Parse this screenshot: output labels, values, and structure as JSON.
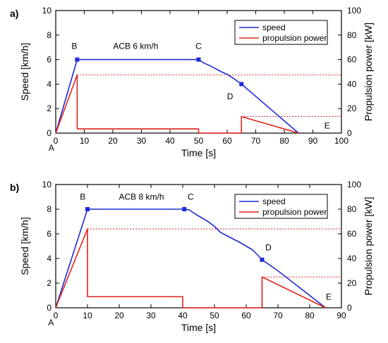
{
  "chart_data": [
    {
      "panel_label": "a)",
      "type": "line",
      "xlabel": "Time [s]",
      "ylabel": "Speed [km/h]",
      "y2label": "Propulsion power [kW]",
      "xlim": [
        0,
        100
      ],
      "ylim": [
        0,
        10
      ],
      "y2lim": [
        0,
        100
      ],
      "xticks": [
        "0",
        "10",
        "20",
        "30",
        "40",
        "50",
        "60",
        "70",
        "80",
        "90",
        "100"
      ],
      "yticks": [
        "0",
        "2",
        "4",
        "6",
        "8",
        "10"
      ],
      "y2ticks": [
        "0",
        "20",
        "40",
        "60",
        "80",
        "100"
      ],
      "annotation": "ACB 6 km/h",
      "legend_position": "top-right",
      "series": [
        {
          "name": "speed",
          "color": "#1f2bd6",
          "axis": "left",
          "x": [
            0,
            7.5,
            50,
            52,
            54,
            56,
            58,
            60,
            62,
            65,
            70,
            75,
            80,
            85
          ],
          "y": [
            0,
            6.0,
            6.0,
            5.7,
            5.5,
            5.25,
            5.0,
            4.8,
            4.5,
            4.0,
            3.0,
            2.0,
            1.0,
            0.0
          ]
        },
        {
          "name": "propulsion power",
          "color": "#e0231c",
          "axis": "right",
          "x": [
            0,
            7.5,
            7.5,
            50,
            50,
            65,
            65,
            85
          ],
          "y": [
            0,
            47.5,
            3.5,
            3.5,
            0,
            0,
            13.5,
            0
          ]
        }
      ],
      "ref_lines": [
        {
          "axis": "right",
          "y": 47.5,
          "x_from": 7.5,
          "x_to": 100
        },
        {
          "axis": "right",
          "y": 13.5,
          "x_from": 65,
          "x_to": 100
        }
      ],
      "markers": [
        {
          "x": 7.5,
          "y": 6.0
        },
        {
          "x": 50,
          "y": 6.0
        },
        {
          "x": 65,
          "y": 4.0
        }
      ],
      "point_labels": [
        {
          "text": "A",
          "x": -1.5,
          "y": -1.2
        },
        {
          "text": "B",
          "x": 6.5,
          "y": 7.1
        },
        {
          "text": "C",
          "x": 50,
          "y": 7.1
        },
        {
          "text": "D",
          "x": 61,
          "y": 3.0
        },
        {
          "text": "E",
          "x": 95,
          "y": 0.6
        }
      ]
    },
    {
      "panel_label": "b)",
      "type": "line",
      "xlabel": "Time [s]",
      "ylabel": "Speed [km/h]",
      "y2label": "Propulsion power [kW]",
      "xlim": [
        0,
        90
      ],
      "ylim": [
        0,
        10
      ],
      "y2lim": [
        0,
        100
      ],
      "xticks": [
        "0",
        "10",
        "20",
        "30",
        "40",
        "50",
        "60",
        "70",
        "80",
        "90"
      ],
      "yticks": [
        "0",
        "2",
        "4",
        "6",
        "8",
        "10"
      ],
      "y2ticks": [
        "0",
        "20",
        "40",
        "60",
        "80",
        "100"
      ],
      "annotation": "ACB 8 km/h",
      "legend_position": "top-right",
      "series": [
        {
          "name": "speed",
          "color": "#1f2bd6",
          "axis": "left",
          "x": [
            0,
            10,
            40.5,
            42,
            44,
            46,
            48,
            50,
            52,
            55,
            58,
            60,
            62,
            65,
            70,
            75,
            80,
            85
          ],
          "y": [
            0,
            8.0,
            8.0,
            7.95,
            7.6,
            7.3,
            7.0,
            6.6,
            6.1,
            5.7,
            5.3,
            5.0,
            4.7,
            3.9,
            3.0,
            2.0,
            1.0,
            0.0
          ]
        },
        {
          "name": "propulsion power",
          "color": "#e0231c",
          "axis": "right",
          "x": [
            0,
            10,
            10,
            40,
            40,
            65,
            65,
            85
          ],
          "y": [
            0,
            64,
            9,
            9,
            0,
            0,
            25,
            0
          ]
        }
      ],
      "ref_lines": [
        {
          "axis": "right",
          "y": 64,
          "x_from": 10,
          "x_to": 90
        },
        {
          "axis": "right",
          "y": 25,
          "x_from": 65,
          "x_to": 90
        }
      ],
      "markers": [
        {
          "x": 10,
          "y": 8.0
        },
        {
          "x": 40.5,
          "y": 8.0
        },
        {
          "x": 65,
          "y": 3.9
        }
      ],
      "point_labels": [
        {
          "text": "A",
          "x": -1.5,
          "y": -1.2
        },
        {
          "text": "B",
          "x": 8.5,
          "y": 9.0
        },
        {
          "text": "C",
          "x": 42.5,
          "y": 9.0
        },
        {
          "text": "D",
          "x": 67,
          "y": 4.9
        },
        {
          "text": "E",
          "x": 86,
          "y": 0.9
        }
      ]
    }
  ]
}
